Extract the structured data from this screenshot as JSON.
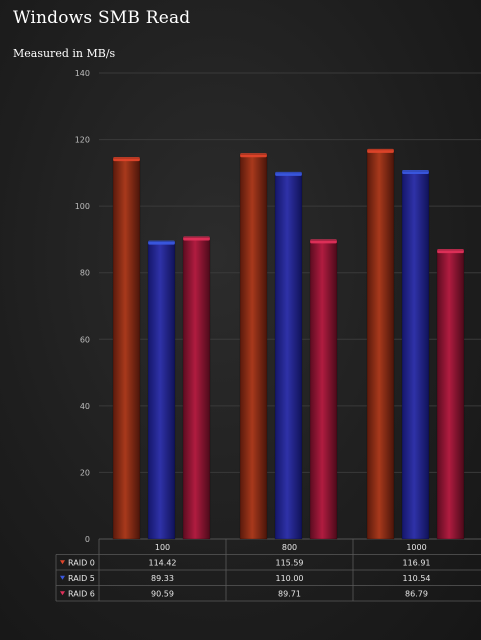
{
  "chart_data": {
    "type": "bar",
    "title": "Windows SMB Read",
    "subtitle": "Measured in MB/s",
    "categories": [
      "100",
      "800",
      "1000"
    ],
    "series": [
      {
        "name": "RAID 0",
        "values": [
          114.42,
          115.59,
          116.91
        ],
        "color": "#b03a1c",
        "marker": "#e0452a"
      },
      {
        "name": "RAID 5",
        "values": [
          89.33,
          110.0,
          110.54
        ],
        "color": "#2a2d9a",
        "marker": "#3a58e0"
      },
      {
        "name": "RAID 6",
        "values": [
          90.59,
          89.71,
          86.79
        ],
        "color": "#a81a3a",
        "marker": "#e0305a"
      }
    ],
    "ylim": [
      0,
      140
    ],
    "yticks": [
      0,
      20,
      40,
      60,
      80,
      100,
      120,
      140
    ],
    "grid": true,
    "legend": "data-table"
  }
}
